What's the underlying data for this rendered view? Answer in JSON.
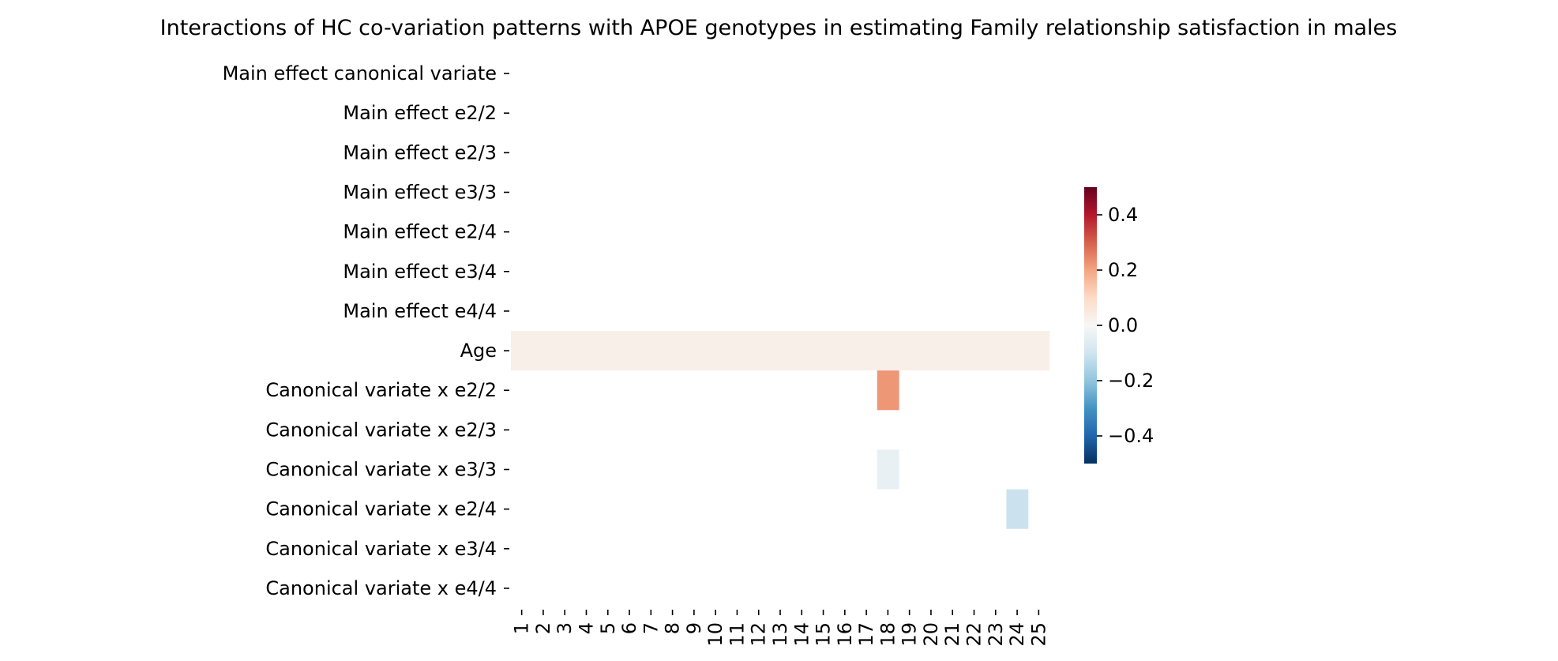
{
  "chart_data": {
    "type": "heatmap",
    "title": "Interactions of HC co-variation patterns with APOE genotypes in estimating Family relationship satisfaction in males",
    "xlabel": "",
    "ylabel": "",
    "rows": [
      "Main effect canonical variate",
      "Main effect e2/2",
      "Main effect e2/3",
      "Main effect e3/3",
      "Main effect e2/4",
      "Main effect e3/4",
      "Main effect e4/4",
      "Age",
      "Canonical variate x e2/2",
      "Canonical variate x e2/3",
      "Canonical variate x e3/3",
      "Canonical variate x e2/4",
      "Canonical variate x e3/4",
      "Canonical variate x e4/4"
    ],
    "columns": [
      "1",
      "2",
      "3",
      "4",
      "5",
      "6",
      "7",
      "8",
      "9",
      "10",
      "11",
      "12",
      "13",
      "14",
      "15",
      "16",
      "17",
      "18",
      "19",
      "20",
      "21",
      "22",
      "23",
      "24",
      "25"
    ],
    "cells": [
      {
        "row": "Age",
        "col": "1",
        "value": 0.03
      },
      {
        "row": "Age",
        "col": "2",
        "value": 0.03
      },
      {
        "row": "Age",
        "col": "3",
        "value": 0.03
      },
      {
        "row": "Age",
        "col": "4",
        "value": 0.03
      },
      {
        "row": "Age",
        "col": "5",
        "value": 0.03
      },
      {
        "row": "Age",
        "col": "6",
        "value": 0.03
      },
      {
        "row": "Age",
        "col": "7",
        "value": 0.03
      },
      {
        "row": "Age",
        "col": "8",
        "value": 0.03
      },
      {
        "row": "Age",
        "col": "9",
        "value": 0.03
      },
      {
        "row": "Age",
        "col": "10",
        "value": 0.03
      },
      {
        "row": "Age",
        "col": "11",
        "value": 0.03
      },
      {
        "row": "Age",
        "col": "12",
        "value": 0.03
      },
      {
        "row": "Age",
        "col": "13",
        "value": 0.03
      },
      {
        "row": "Age",
        "col": "14",
        "value": 0.03
      },
      {
        "row": "Age",
        "col": "15",
        "value": 0.03
      },
      {
        "row": "Age",
        "col": "16",
        "value": 0.03
      },
      {
        "row": "Age",
        "col": "17",
        "value": 0.03
      },
      {
        "row": "Age",
        "col": "18",
        "value": 0.03
      },
      {
        "row": "Age",
        "col": "19",
        "value": 0.03
      },
      {
        "row": "Age",
        "col": "20",
        "value": 0.03
      },
      {
        "row": "Age",
        "col": "21",
        "value": 0.03
      },
      {
        "row": "Age",
        "col": "22",
        "value": 0.03
      },
      {
        "row": "Age",
        "col": "23",
        "value": 0.03
      },
      {
        "row": "Age",
        "col": "24",
        "value": 0.03
      },
      {
        "row": "Age",
        "col": "25",
        "value": 0.03
      },
      {
        "row": "Canonical variate x e2/2",
        "col": "18",
        "value": 0.22
      },
      {
        "row": "Canonical variate x e3/3",
        "col": "18",
        "value": -0.04
      },
      {
        "row": "Canonical variate x e2/4",
        "col": "24",
        "value": -0.11
      }
    ],
    "colorbar": {
      "min": -0.5,
      "max": 0.5,
      "ticks": [
        0.4,
        0.2,
        0.0,
        -0.2,
        -0.4
      ],
      "tick_labels": [
        "0.4",
        "0.2",
        "0.0",
        "−0.2",
        "−0.4"
      ],
      "colormap": "RdBu_r",
      "colors": [
        "#053061",
        "#2166ac",
        "#4393c3",
        "#92c5de",
        "#d1e5f0",
        "#f7f7f7",
        "#fddbc7",
        "#f4a582",
        "#d6604d",
        "#b2182b",
        "#67001f"
      ]
    },
    "grid": false,
    "legend": "colorbar-right"
  }
}
